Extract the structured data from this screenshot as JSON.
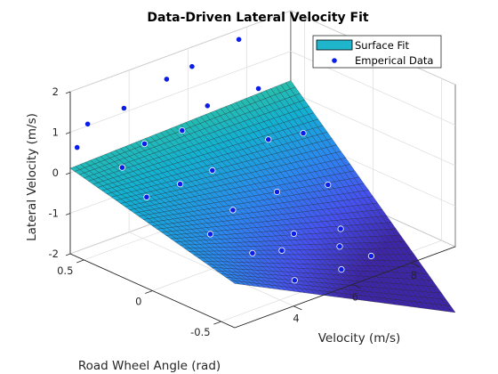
{
  "chart_data": {
    "type": "surface",
    "title": "Data-Driven Lateral Velocity Fit",
    "xlabel": "Velocity (m/s)",
    "ylabel": "Road Wheel Angle (rad)",
    "zlabel": "Lateral Velocity (m/s)",
    "xlim": [
      2,
      9.5
    ],
    "ylim": [
      -0.6,
      0.6
    ],
    "zlim": [
      -2,
      2
    ],
    "x_ticks": [
      "4",
      "6",
      "8"
    ],
    "y_ticks": [
      "0.5",
      "0",
      "-0.5"
    ],
    "z_ticks": [
      "2",
      "1",
      "0",
      "-1",
      "-2"
    ],
    "legend": {
      "position": "top-right",
      "entries": [
        "Surface Fit",
        "Emperical Data"
      ]
    },
    "colors": {
      "surface_low": "#3e26a8",
      "surface_high": "#f9fb15",
      "legend_patch": "#1fb5cc",
      "marker": "#0b1de8"
    },
    "surface": {
      "x": [
        2.0,
        9.5
      ],
      "y": [
        -0.6,
        0.6
      ],
      "grid": [
        44,
        36
      ],
      "model": "z = c0 + c1*(x-2) + c2*y*(x-2) + c3*y",
      "coefficients": [
        -0.4,
        -0.17,
        0.32,
        0.85
      ]
    },
    "empirical_data": [
      {
        "x": 2.0,
        "y": 0.55,
        "z": 0.7
      },
      {
        "x": 2.5,
        "y": 0.58,
        "z": 1.1
      },
      {
        "x": 3.5,
        "y": 0.53,
        "z": 1.3
      },
      {
        "x": 5.0,
        "y": 0.54,
        "z": 1.6
      },
      {
        "x": 6.0,
        "y": 0.57,
        "z": 1.6
      },
      {
        "x": 7.5,
        "y": 0.55,
        "z": 1.9
      },
      {
        "x": 2.6,
        "y": 0.35,
        "z": 0.35
      },
      {
        "x": 3.5,
        "y": 0.38,
        "z": 0.65
      },
      {
        "x": 4.5,
        "y": 0.32,
        "z": 0.8
      },
      {
        "x": 5.5,
        "y": 0.35,
        "z": 1.1
      },
      {
        "x": 7.0,
        "y": 0.3,
        "z": 1.2
      },
      {
        "x": 2.5,
        "y": 0.15,
        "z": -0.05
      },
      {
        "x": 3.5,
        "y": 0.12,
        "z": 0.05
      },
      {
        "x": 4.5,
        "y": 0.1,
        "z": 0.15
      },
      {
        "x": 6.5,
        "y": 0.12,
        "z": 0.35
      },
      {
        "x": 7.5,
        "y": 0.08,
        "z": 0.3
      },
      {
        "x": 3.5,
        "y": -0.1,
        "z": -0.85
      },
      {
        "x": 4.5,
        "y": -0.05,
        "z": -0.6
      },
      {
        "x": 6.0,
        "y": -0.05,
        "z": -0.55
      },
      {
        "x": 7.5,
        "y": -0.1,
        "z": -0.7
      },
      {
        "x": 4.0,
        "y": -0.3,
        "z": -1.15
      },
      {
        "x": 5.5,
        "y": -0.28,
        "z": -1.1
      },
      {
        "x": 7.0,
        "y": -0.3,
        "z": -1.35
      },
      {
        "x": 4.5,
        "y": -0.5,
        "z": -1.65
      },
      {
        "x": 6.0,
        "y": -0.52,
        "z": -1.75
      },
      {
        "x": 7.2,
        "y": -0.48,
        "z": -1.8
      },
      {
        "x": 5.0,
        "y": -0.3,
        "z": -1.35
      },
      {
        "x": 6.5,
        "y": -0.4,
        "z": -1.5
      }
    ]
  }
}
